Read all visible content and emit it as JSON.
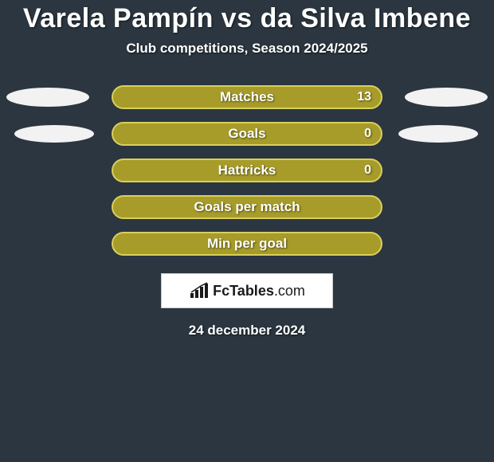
{
  "background_color": "#2b3640",
  "title": "Varela Pampín vs da Silva Imbene",
  "title_color": "#ffffff",
  "title_fontsize": 34,
  "subtitle": "Club competitions, Season 2024/2025",
  "subtitle_color": "#ffffff",
  "subtitle_fontsize": 17,
  "bars": [
    {
      "label": "Matches",
      "value": "13",
      "show_left_ellipse": true,
      "show_right_ellipse": true,
      "ellipse_variant": 1
    },
    {
      "label": "Goals",
      "value": "0",
      "show_left_ellipse": true,
      "show_right_ellipse": true,
      "ellipse_variant": 2
    },
    {
      "label": "Hattricks",
      "value": "0",
      "show_left_ellipse": false,
      "show_right_ellipse": false,
      "ellipse_variant": 0
    },
    {
      "label": "Goals per match",
      "value": "",
      "show_left_ellipse": false,
      "show_right_ellipse": false,
      "ellipse_variant": 0
    },
    {
      "label": "Min per goal",
      "value": "",
      "show_left_ellipse": false,
      "show_right_ellipse": false,
      "ellipse_variant": 0
    }
  ],
  "bar_style": {
    "fill_color": "#a79c2a",
    "border_color": "#d9cf5c",
    "border_width": 2,
    "height": 30,
    "radius": 15,
    "label_color": "#ffffff",
    "label_fontsize": 17,
    "value_color": "#ffffff",
    "value_fontsize": 16
  },
  "ellipse_style": {
    "fill_color": "#f2f2f2"
  },
  "logo": {
    "text_bold": "FcTables",
    "text_light": ".com",
    "box_bg": "#ffffff",
    "box_border": "#cccccc",
    "text_color": "#1a1a1a",
    "fontsize": 18
  },
  "date": "24 december 2024",
  "date_color": "#ffffff",
  "date_fontsize": 17
}
